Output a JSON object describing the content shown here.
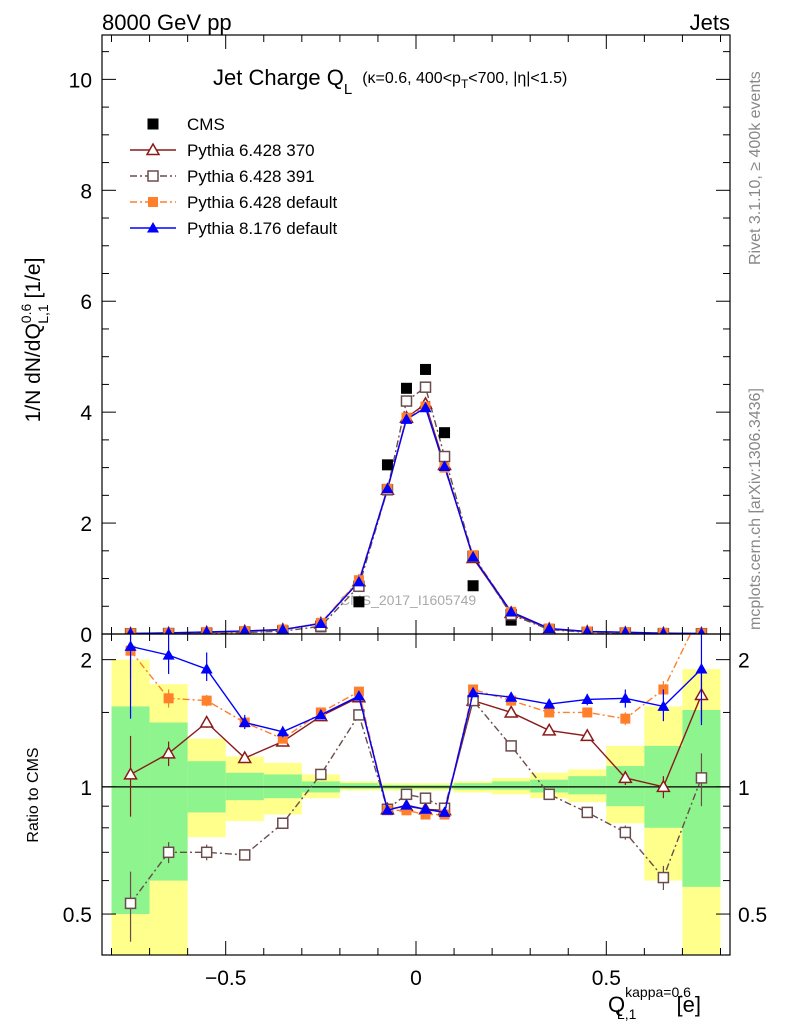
{
  "header": {
    "left": "8000 GeV pp",
    "right": "Jets",
    "side_top": "Rivet 3.1.10, ≥ 400k events",
    "side_bottom": "mcplots.cern.ch [arXiv:1306.3436]",
    "watermark": "CMS_2017_I1605749"
  },
  "chart_data": [
    {
      "type": "scatter",
      "panel": "main",
      "title": "Jet Charge Q",
      "title_sub": "L",
      "title_extra": "(κ=0.6, 400<p",
      "title_extra_sub": "T",
      "title_extra_tail": "<700, |η|<1.5)",
      "ylabel": "1/N dN/dQ",
      "ylabel_sup": "0.6",
      "ylabel_sub": "L,1",
      "ylabel_tail": " [1/e]",
      "xlim": [
        -0.825,
        0.825
      ],
      "ylim": [
        0,
        10.8
      ],
      "yticks": [
        0,
        2,
        4,
        6,
        8,
        10
      ],
      "log_y": false,
      "legend_position": "top-left",
      "x": [
        -0.75,
        -0.65,
        -0.55,
        -0.45,
        -0.35,
        -0.25,
        -0.15,
        -0.075,
        -0.025,
        0.025,
        0.075,
        0.15,
        0.25,
        0.35,
        0.45,
        0.55,
        0.65,
        0.75
      ],
      "series": [
        {
          "name": "CMS",
          "color": "#000000",
          "marker": "square-filled",
          "line": "none",
          "values": [
            0.005,
            0.01,
            0.02,
            0.04,
            0.06,
            0.13,
            0.58,
            3.05,
            4.43,
            4.77,
            3.63,
            0.87,
            0.25,
            0.06,
            0.03,
            0.02,
            0.01,
            0.005
          ]
        },
        {
          "name": "Pythia 6.428 370",
          "color": "#8b1a1a",
          "marker": "triangle-open",
          "line": "solid",
          "values": [
            0.006,
            0.012,
            0.029,
            0.047,
            0.077,
            0.19,
            0.95,
            2.6,
            3.9,
            4.15,
            3.05,
            1.37,
            0.38,
            0.09,
            0.04,
            0.021,
            0.01,
            0.008
          ]
        },
        {
          "name": "Pythia 6.428 391",
          "color": "#6b4c4c",
          "marker": "square-open",
          "line": "dashdot",
          "values": [
            0.003,
            0.007,
            0.014,
            0.028,
            0.05,
            0.14,
            0.86,
            2.6,
            4.2,
            4.45,
            3.2,
            1.4,
            0.35,
            0.08,
            0.03,
            0.016,
            0.006,
            0.005
          ]
        },
        {
          "name": "Pythia 6.428 default",
          "color": "#ff7f2a",
          "marker": "square-filled",
          "line": "dashdot",
          "values": [
            0.011,
            0.016,
            0.032,
            0.052,
            0.08,
            0.2,
            0.97,
            2.62,
            3.9,
            4.1,
            3.0,
            1.42,
            0.4,
            0.1,
            0.045,
            0.029,
            0.017,
            0.011
          ]
        },
        {
          "name": "Pythia 8.176 default",
          "color": "#0000ff",
          "marker": "triangle-filled",
          "line": "solid",
          "values": [
            0.011,
            0.021,
            0.038,
            0.056,
            0.081,
            0.19,
            0.94,
            2.62,
            3.87,
            4.08,
            3.02,
            1.39,
            0.4,
            0.1,
            0.046,
            0.032,
            0.015,
            0.0095
          ]
        }
      ]
    },
    {
      "type": "line",
      "panel": "ratio",
      "ylabel": "Ratio to CMS",
      "xlabel": "Q",
      "xlabel_sup": "kappa=0.6",
      "xlabel_sub": "L,1",
      "xlabel_tail": " [e]",
      "xlim": [
        -0.825,
        0.825
      ],
      "ylim": [
        0.4,
        2.3
      ],
      "log_y": true,
      "xticks": [
        -0.5,
        0,
        0.5
      ],
      "xtick_labels": [
        "−0.5",
        "0",
        "0.5"
      ],
      "yticks": [
        0.5,
        1,
        2
      ],
      "ytick_labels": [
        "0.5",
        "1",
        "2"
      ],
      "reference_line": 1,
      "bins": [
        [
          -0.8,
          -0.7
        ],
        [
          -0.7,
          -0.6
        ],
        [
          -0.6,
          -0.5
        ],
        [
          -0.5,
          -0.4
        ],
        [
          -0.4,
          -0.3
        ],
        [
          -0.3,
          -0.2
        ],
        [
          -0.2,
          -0.1
        ],
        [
          -0.1,
          -0.05
        ],
        [
          -0.05,
          0
        ],
        [
          0,
          0.05
        ],
        [
          0.05,
          0.1
        ],
        [
          0.1,
          0.2
        ],
        [
          0.2,
          0.3
        ],
        [
          0.3,
          0.4
        ],
        [
          0.4,
          0.5
        ],
        [
          0.5,
          0.6
        ],
        [
          0.6,
          0.7
        ],
        [
          0.7,
          0.8
        ]
      ],
      "band_inner": [
        [
          0.5,
          1.55
        ],
        [
          0.6,
          1.42
        ],
        [
          0.87,
          1.15
        ],
        [
          0.93,
          1.08
        ],
        [
          0.94,
          1.07
        ],
        [
          0.97,
          1.03
        ],
        [
          0.99,
          1.02
        ],
        [
          0.99,
          1.01
        ],
        [
          0.99,
          1.01
        ],
        [
          0.99,
          1.01
        ],
        [
          0.99,
          1.01
        ],
        [
          0.985,
          1.02
        ],
        [
          0.985,
          1.03
        ],
        [
          0.97,
          1.04
        ],
        [
          0.96,
          1.06
        ],
        [
          0.9,
          1.12
        ],
        [
          0.8,
          1.25
        ],
        [
          0.58,
          1.52
        ]
      ],
      "band_outer": [
        [
          0.4,
          2.0
        ],
        [
          0.4,
          1.75
        ],
        [
          0.76,
          1.3
        ],
        [
          0.83,
          1.18
        ],
        [
          0.86,
          1.14
        ],
        [
          0.94,
          1.07
        ],
        [
          0.98,
          1.03
        ],
        [
          0.98,
          1.02
        ],
        [
          0.98,
          1.02
        ],
        [
          0.98,
          1.02
        ],
        [
          0.98,
          1.02
        ],
        [
          0.97,
          1.03
        ],
        [
          0.96,
          1.05
        ],
        [
          0.94,
          1.08
        ],
        [
          0.92,
          1.1
        ],
        [
          0.82,
          1.25
        ],
        [
          0.6,
          1.55
        ],
        [
          0.4,
          1.9
        ]
      ],
      "band_colors": {
        "inner": "#8ef48e",
        "outer": "#ffff8c"
      },
      "x": [
        -0.75,
        -0.65,
        -0.55,
        -0.45,
        -0.35,
        -0.25,
        -0.15,
        -0.075,
        -0.025,
        0.025,
        0.075,
        0.15,
        0.25,
        0.35,
        0.45,
        0.55,
        0.65,
        0.75
      ],
      "series": [
        {
          "name": "Pythia 6.428 370",
          "color": "#8b1a1a",
          "marker": "triangle-open",
          "line": "solid",
          "values": [
            1.07,
            1.2,
            1.42,
            1.17,
            1.28,
            1.47,
            1.63,
            0.885,
            0.9,
            0.885,
            0.88,
            1.6,
            1.5,
            1.36,
            1.32,
            1.05,
            1.0,
            1.65
          ],
          "err_lo": [
            0.22,
            0.08,
            0.04,
            0.03,
            0.03,
            0.02,
            0.02,
            0.01,
            0.01,
            0.01,
            0.01,
            0.02,
            0.02,
            0.03,
            0.03,
            0.04,
            0.06,
            0.22
          ],
          "err_hi": [
            0.25,
            0.08,
            0.04,
            0.03,
            0.03,
            0.02,
            0.02,
            0.01,
            0.01,
            0.01,
            0.01,
            0.02,
            0.02,
            0.03,
            0.03,
            0.04,
            0.06,
            0.25
          ]
        },
        {
          "name": "Pythia 6.428 391",
          "color": "#6b4c4c",
          "marker": "square-open",
          "line": "dashdot",
          "values": [
            0.53,
            0.7,
            0.7,
            0.69,
            0.82,
            1.07,
            1.48,
            0.885,
            0.96,
            0.94,
            0.89,
            1.6,
            1.25,
            0.96,
            0.87,
            0.78,
            0.61,
            1.05
          ],
          "err_lo": [
            0.1,
            0.04,
            0.03,
            0.02,
            0.02,
            0.02,
            0.02,
            0.01,
            0.01,
            0.01,
            0.01,
            0.02,
            0.02,
            0.02,
            0.02,
            0.03,
            0.04,
            0.15
          ],
          "err_hi": [
            0.1,
            0.04,
            0.03,
            0.02,
            0.02,
            0.02,
            0.02,
            0.01,
            0.01,
            0.01,
            0.01,
            0.02,
            0.02,
            0.02,
            0.02,
            0.03,
            0.04,
            0.15
          ]
        },
        {
          "name": "Pythia 6.428 default",
          "color": "#ff7f2a",
          "marker": "square-filled",
          "line": "dashdot",
          "values": [
            2.1,
            1.62,
            1.6,
            1.42,
            1.3,
            1.5,
            1.68,
            0.88,
            0.88,
            0.86,
            0.86,
            1.7,
            1.6,
            1.5,
            1.5,
            1.45,
            1.7,
            2.6
          ],
          "err_lo": [
            0.3,
            0.08,
            0.05,
            0.03,
            0.03,
            0.02,
            0.02,
            0.01,
            0.01,
            0.01,
            0.01,
            0.02,
            0.02,
            0.03,
            0.03,
            0.05,
            0.08,
            0.3
          ],
          "err_hi": [
            0.3,
            0.08,
            0.05,
            0.03,
            0.03,
            0.02,
            0.02,
            0.01,
            0.01,
            0.01,
            0.01,
            0.02,
            0.02,
            0.03,
            0.03,
            0.05,
            0.08,
            0.3
          ]
        },
        {
          "name": "Pythia 8.176 default",
          "color": "#0000ff",
          "marker": "triangle-filled",
          "line": "solid",
          "values": [
            2.15,
            2.05,
            1.9,
            1.42,
            1.35,
            1.48,
            1.64,
            0.88,
            0.905,
            0.885,
            0.87,
            1.67,
            1.63,
            1.57,
            1.61,
            1.62,
            1.55,
            1.9
          ],
          "err_lo": [
            0.7,
            0.2,
            0.12,
            0.05,
            0.04,
            0.02,
            0.02,
            0.01,
            0.01,
            0.01,
            0.01,
            0.02,
            0.02,
            0.03,
            0.05,
            0.08,
            0.12,
            0.5
          ],
          "err_hi": [
            0.7,
            0.25,
            0.18,
            0.06,
            0.04,
            0.02,
            0.02,
            0.01,
            0.01,
            0.01,
            0.01,
            0.02,
            0.02,
            0.03,
            0.05,
            0.08,
            0.15,
            0.5
          ]
        }
      ]
    }
  ]
}
